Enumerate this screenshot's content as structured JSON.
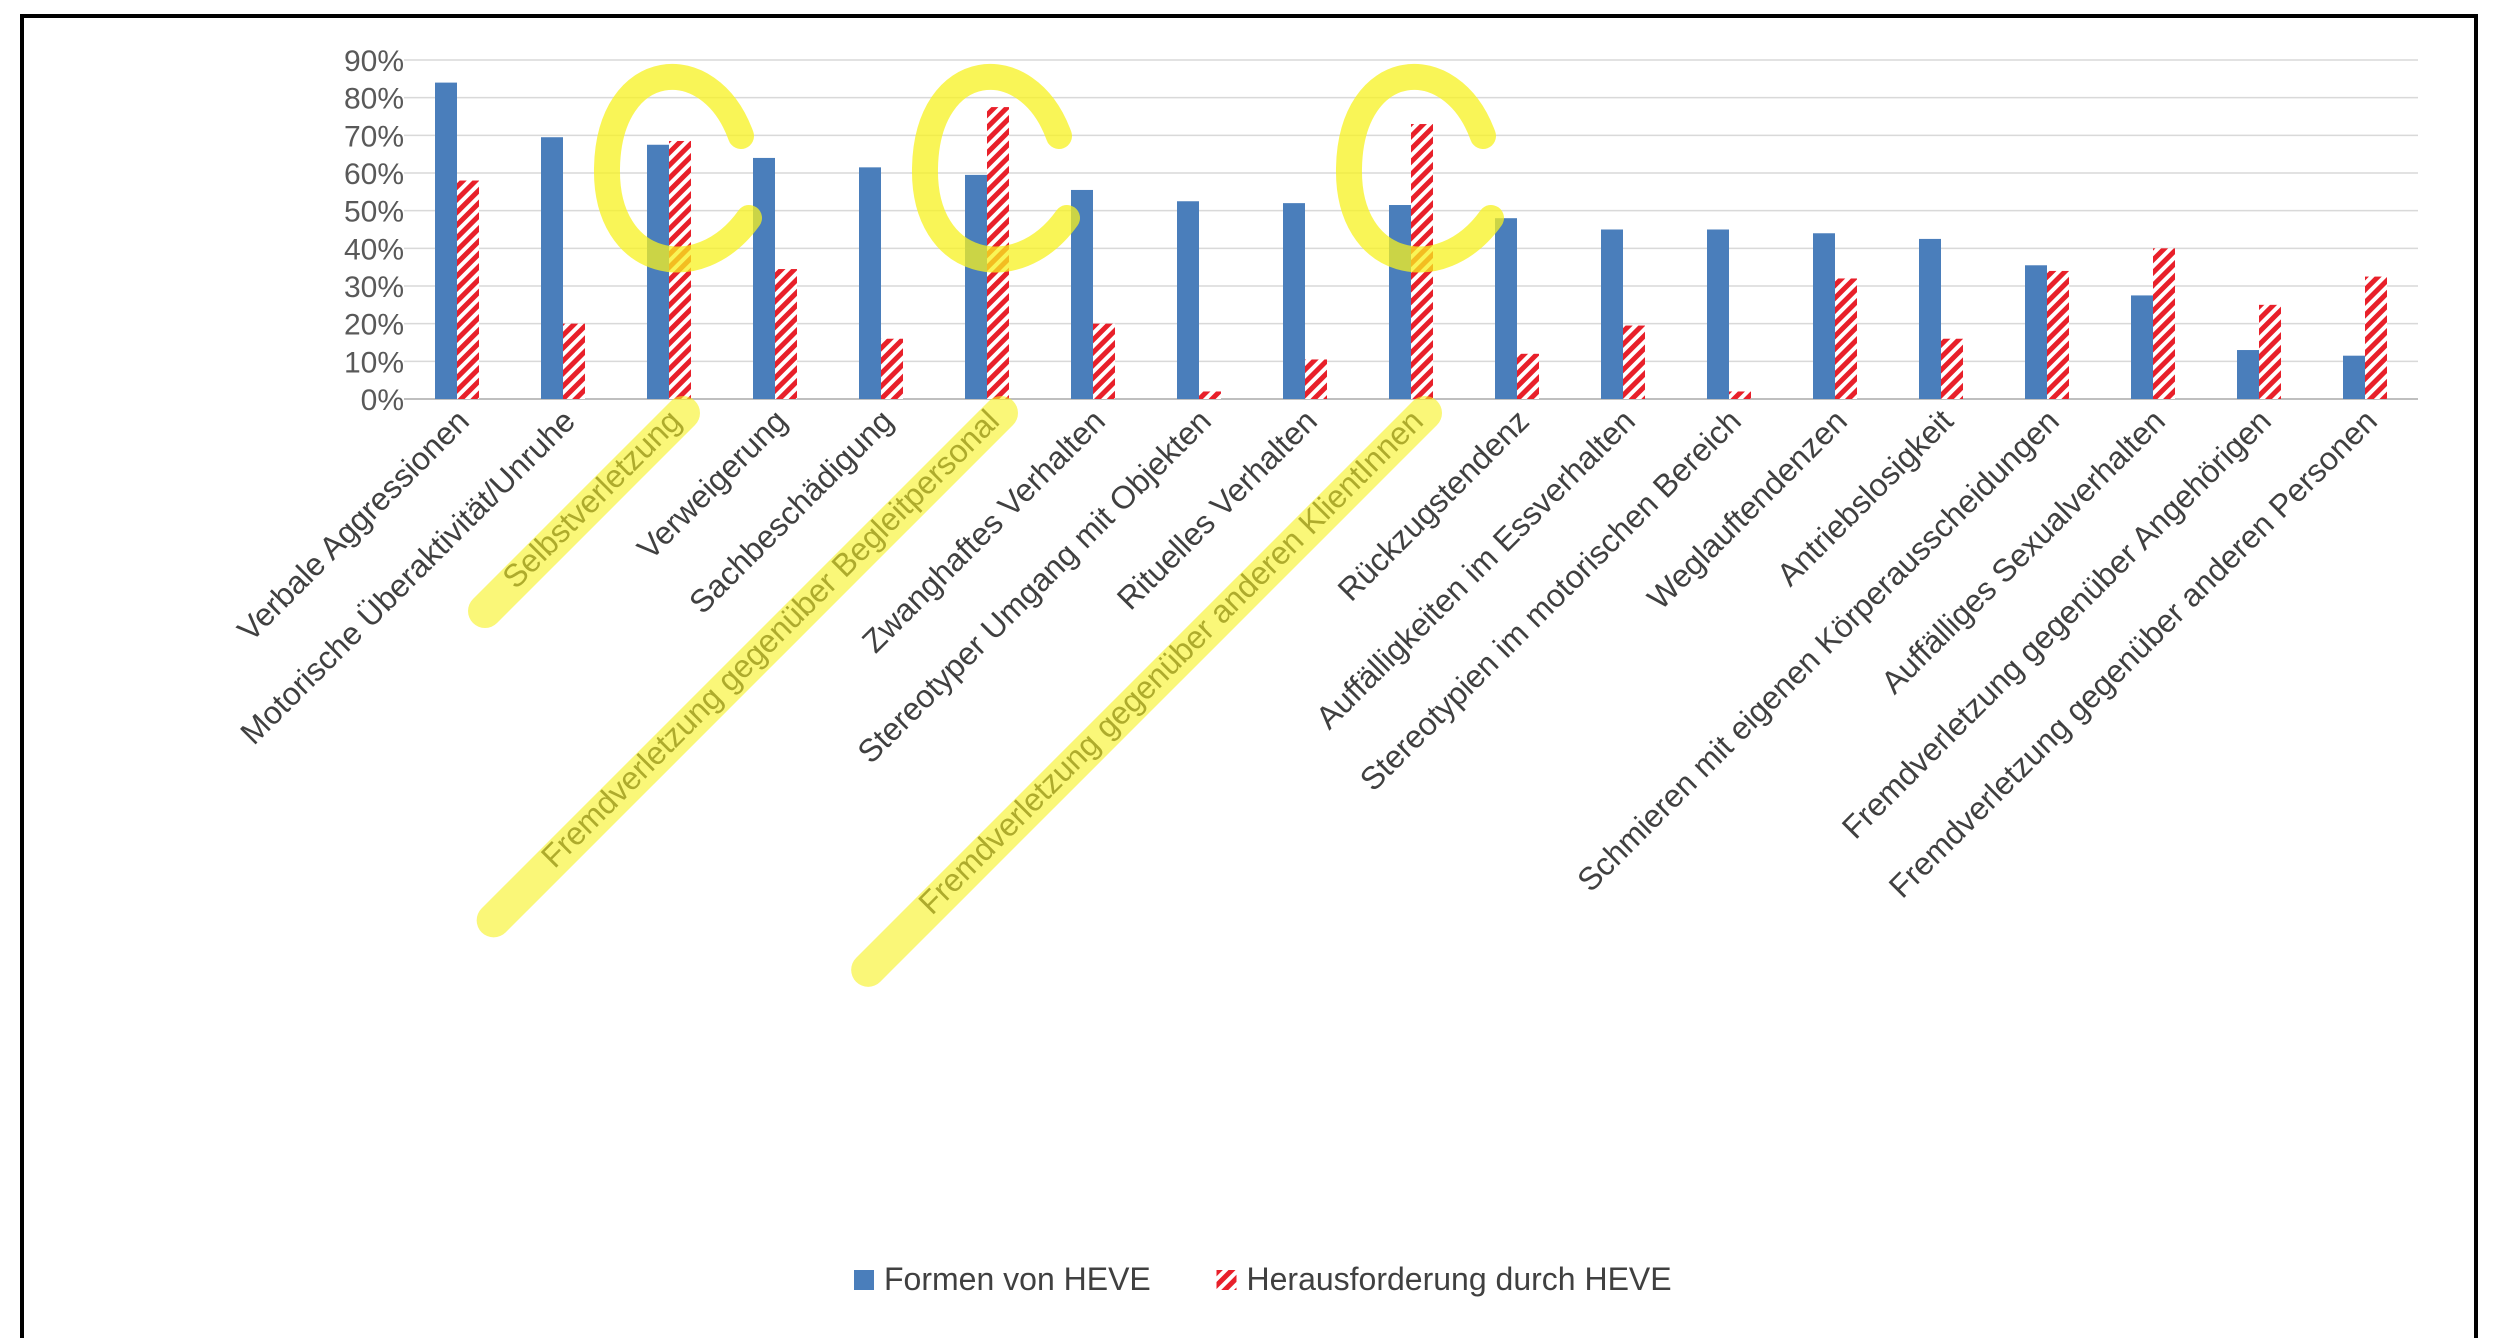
{
  "chart_data": {
    "type": "bar",
    "categories": [
      "Verbale Aggressionen",
      "Motorische Überaktivität/Unruhe",
      "Selbstverletzung",
      "Verweigerung",
      "Sachbeschädigung",
      "Fremdverletzung gegenüber Begleitpersonal",
      "Zwanghaftes Verhalten",
      "Stereotyper Umgang mit Objekten",
      "Rituelles Verhalten",
      "Fremdverletzung gegenüber anderen KlientInnen",
      "Rückzugstendenz",
      "Auffälligkeiten im Essverhalten",
      "Stereotypien im motorischen Bereich",
      "Weglauftendenzen",
      "Antriebslosigkeit",
      "Schmieren mit eigenen Körperausscheidungen",
      "Auffälliges Sexualverhalten",
      "Fremdverletzung gegenüber Angehörigen",
      "Fremdverletzung gegenüber anderen Personen"
    ],
    "series": [
      {
        "name": "Formen von HEVE",
        "color": "#4a7ebb",
        "values": [
          84,
          69.5,
          67.5,
          64,
          61.5,
          59.5,
          55.5,
          52.5,
          52,
          51.5,
          48,
          45,
          45,
          44,
          42.5,
          35.5,
          27.5,
          13,
          11.5
        ]
      },
      {
        "name": "Herausforderung durch HEVE",
        "color": "#e8202a",
        "pattern": "diagonal-hatch",
        "values": [
          58,
          20,
          68.5,
          34.5,
          16,
          77.5,
          20,
          2,
          10.5,
          73,
          12,
          19.5,
          2,
          32,
          16,
          34,
          40,
          25,
          32.5
        ]
      }
    ],
    "yticks": [
      "0%",
      "10%",
      "20%",
      "30%",
      "40%",
      "50%",
      "60%",
      "70%",
      "80%",
      "90%"
    ],
    "ylim": [
      0,
      90
    ],
    "grid": true,
    "legend": "bottom-center",
    "title": "",
    "xlabel": "",
    "ylabel": "",
    "highlighted_categories": [
      2,
      5,
      9
    ],
    "highlight_color": "#f7f21f"
  }
}
